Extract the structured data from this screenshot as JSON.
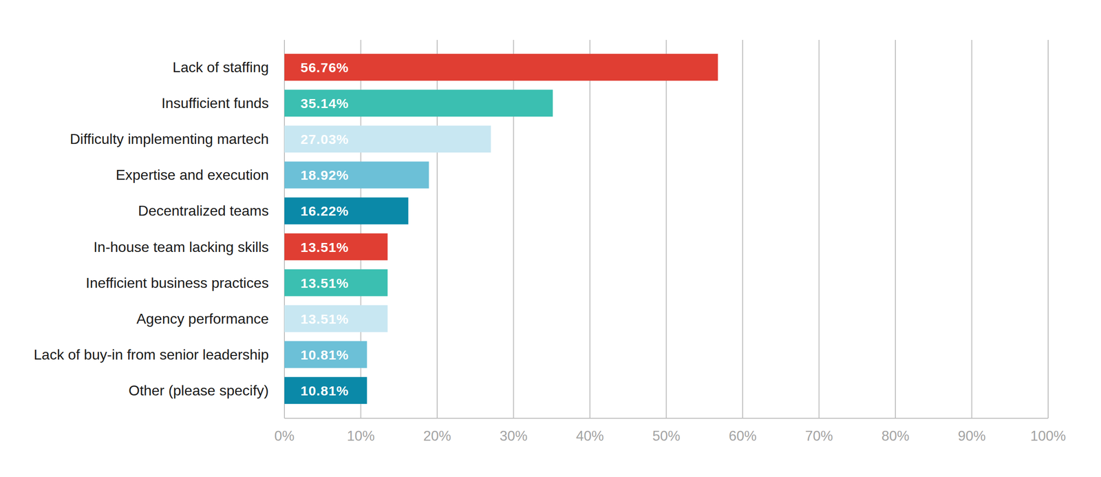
{
  "chart_data": {
    "type": "bar",
    "orientation": "horizontal",
    "categories": [
      "Lack of staffing",
      "Insufficient funds",
      "Difficulty implementing martech",
      "Expertise and execution",
      "Decentralized teams",
      "In-house team lacking skills",
      "Inefficient business practices",
      "Agency performance",
      "Lack of buy-in from senior leadership",
      "Other (please specify)"
    ],
    "values": [
      56.76,
      35.14,
      27.03,
      18.92,
      16.22,
      13.51,
      13.51,
      13.51,
      10.81,
      10.81
    ],
    "value_labels": [
      "56.76%",
      "35.14%",
      "27.03%",
      "18.92%",
      "16.22%",
      "13.51%",
      "13.51%",
      "13.51%",
      "10.81%",
      "10.81%"
    ],
    "colors": [
      "#e03e33",
      "#3bbfb1",
      "#c8e7f2",
      "#6cc0d7",
      "#0b89a8",
      "#e03e33",
      "#3bbfb1",
      "#c8e7f2",
      "#6cc0d7",
      "#0b89a8"
    ],
    "xlim": [
      0,
      100
    ],
    "xticks": [
      {
        "value": 0,
        "label": "0%"
      },
      {
        "value": 10,
        "label": "10%"
      },
      {
        "value": 20,
        "label": "20%"
      },
      {
        "value": 30,
        "label": "30%"
      },
      {
        "value": 40,
        "label": "40%"
      },
      {
        "value": 50,
        "label": "50%"
      },
      {
        "value": 60,
        "label": "60%"
      },
      {
        "value": 70,
        "label": "70%"
      },
      {
        "value": 80,
        "label": "80%"
      },
      {
        "value": 90,
        "label": "90%"
      },
      {
        "value": 100,
        "label": "100%"
      }
    ],
    "grid": true,
    "data_labels": true
  }
}
